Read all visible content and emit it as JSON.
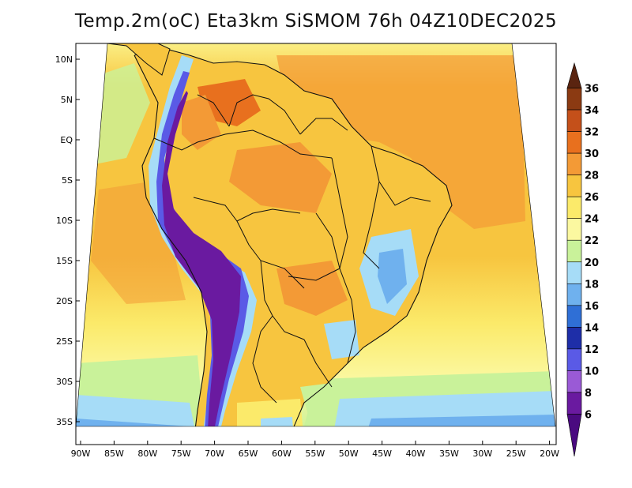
{
  "title": "Temp.2m(oC) Eta3km SiSMOM 76h 04Z10DEC2025",
  "lat_labels": [
    "10N",
    "5N",
    "EQ",
    "5S",
    "10S",
    "15S",
    "20S",
    "25S",
    "30S",
    "35S"
  ],
  "lon_labels": [
    "90W",
    "85W",
    "80W",
    "75W",
    "70W",
    "65W",
    "60W",
    "55W",
    "50W",
    "45W",
    "40W",
    "35W",
    "30W",
    "25W",
    "20W"
  ],
  "colorbar": {
    "labels": [
      "36",
      "34",
      "32",
      "30",
      "28",
      "26",
      "24",
      "22",
      "20",
      "18",
      "16",
      "14",
      "12",
      "10",
      "8",
      "6"
    ],
    "colors": [
      "#5a2410",
      "#8b3a12",
      "#c4501a",
      "#e8701e",
      "#f39a36",
      "#f7c53f",
      "#fbea6a",
      "#fbf8a0",
      "#c9f29a",
      "#a6dcf7",
      "#6fb1ee",
      "#2f6fd6",
      "#1e2ea8",
      "#5a5ae6",
      "#9a5ad6",
      "#6a1aa0",
      "#4a0a80"
    ]
  }
}
